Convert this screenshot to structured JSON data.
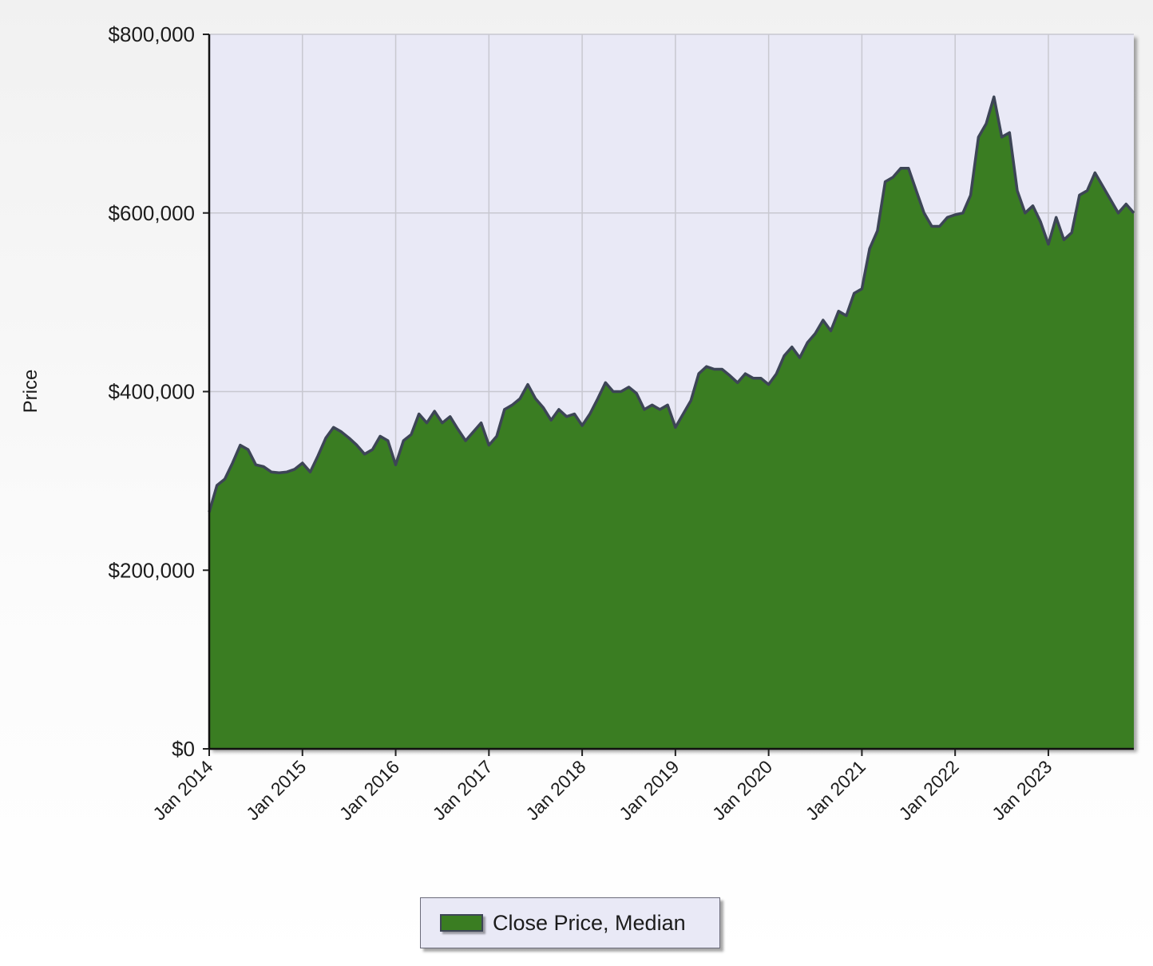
{
  "chart_data": {
    "type": "area",
    "ylabel": "Price",
    "ylim": [
      0,
      800000
    ],
    "y_ticks": [
      "$0",
      "$200,000",
      "$400,000",
      "$600,000",
      "$800,000"
    ],
    "x_range": [
      "2014-01",
      "2023-12"
    ],
    "x_ticks": [
      "Jan 2014",
      "Jan 2015",
      "Jan 2016",
      "Jan 2017",
      "Jan 2018",
      "Jan 2019",
      "Jan 2020",
      "Jan 2021",
      "Jan 2022",
      "Jan 2023"
    ],
    "grid": true,
    "legend_position": "bottom",
    "colors": {
      "fill": "#3a7d22",
      "line": "#3d4556",
      "plot_bg": "#e9e9f6"
    },
    "series": [
      {
        "name": "Close Price, Median",
        "x": [
          "2014-01",
          "2014-02",
          "2014-03",
          "2014-04",
          "2014-05",
          "2014-06",
          "2014-07",
          "2014-08",
          "2014-09",
          "2014-10",
          "2014-11",
          "2014-12",
          "2015-01",
          "2015-02",
          "2015-03",
          "2015-04",
          "2015-05",
          "2015-06",
          "2015-07",
          "2015-08",
          "2015-09",
          "2015-10",
          "2015-11",
          "2015-12",
          "2016-01",
          "2016-02",
          "2016-03",
          "2016-04",
          "2016-05",
          "2016-06",
          "2016-07",
          "2016-08",
          "2016-09",
          "2016-10",
          "2016-11",
          "2016-12",
          "2017-01",
          "2017-02",
          "2017-03",
          "2017-04",
          "2017-05",
          "2017-06",
          "2017-07",
          "2017-08",
          "2017-09",
          "2017-10",
          "2017-11",
          "2017-12",
          "2018-01",
          "2018-02",
          "2018-03",
          "2018-04",
          "2018-05",
          "2018-06",
          "2018-07",
          "2018-08",
          "2018-09",
          "2018-10",
          "2018-11",
          "2018-12",
          "2019-01",
          "2019-02",
          "2019-03",
          "2019-04",
          "2019-05",
          "2019-06",
          "2019-07",
          "2019-08",
          "2019-09",
          "2019-10",
          "2019-11",
          "2019-12",
          "2020-01",
          "2020-02",
          "2020-03",
          "2020-04",
          "2020-05",
          "2020-06",
          "2020-07",
          "2020-08",
          "2020-09",
          "2020-10",
          "2020-11",
          "2020-12",
          "2021-01",
          "2021-02",
          "2021-03",
          "2021-04",
          "2021-05",
          "2021-06",
          "2021-07",
          "2021-08",
          "2021-09",
          "2021-10",
          "2021-11",
          "2021-12",
          "2022-01",
          "2022-02",
          "2022-03",
          "2022-04",
          "2022-05",
          "2022-06",
          "2022-07",
          "2022-08",
          "2022-09",
          "2022-10",
          "2022-11",
          "2022-12",
          "2023-01",
          "2023-02",
          "2023-03",
          "2023-04",
          "2023-05",
          "2023-06",
          "2023-07",
          "2023-08",
          "2023-09",
          "2023-10",
          "2023-11",
          "2023-12"
        ],
        "values": [
          265000,
          295000,
          302000,
          320000,
          340000,
          335000,
          318000,
          316000,
          310000,
          309000,
          310000,
          313000,
          320000,
          310000,
          328000,
          348000,
          360000,
          355000,
          348000,
          340000,
          330000,
          335000,
          350000,
          345000,
          318000,
          345000,
          352000,
          375000,
          365000,
          378000,
          365000,
          372000,
          358000,
          345000,
          355000,
          365000,
          340000,
          350000,
          380000,
          385000,
          392000,
          408000,
          392000,
          382000,
          368000,
          380000,
          372000,
          375000,
          362000,
          375000,
          392000,
          410000,
          400000,
          400000,
          405000,
          398000,
          380000,
          385000,
          380000,
          385000,
          360000,
          375000,
          390000,
          420000,
          428000,
          425000,
          425000,
          418000,
          410000,
          420000,
          415000,
          415000,
          408000,
          420000,
          440000,
          450000,
          438000,
          455000,
          465000,
          480000,
          468000,
          490000,
          485000,
          510000,
          515000,
          560000,
          580000,
          635000,
          640000,
          650000,
          650000,
          625000,
          600000,
          585000,
          585000,
          595000,
          598000,
          600000,
          620000,
          685000,
          700000,
          730000,
          685000,
          690000,
          625000,
          600000,
          608000,
          590000,
          565000,
          595000,
          570000,
          578000,
          620000,
          625000,
          645000,
          630000,
          615000,
          600000,
          610000,
          600000
        ]
      }
    ]
  }
}
